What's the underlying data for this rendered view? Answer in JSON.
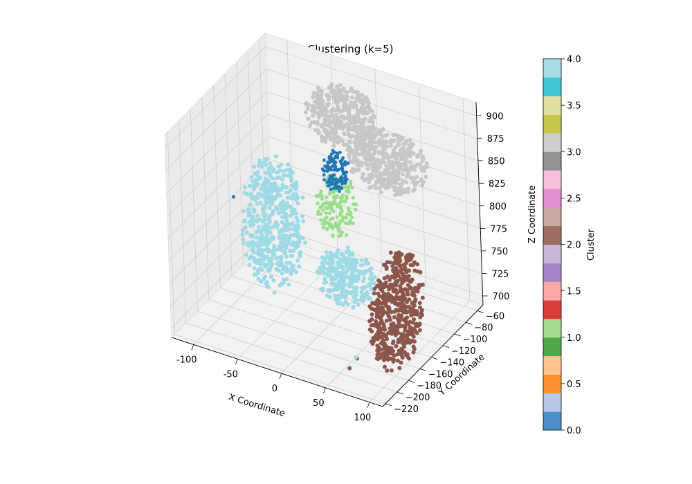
{
  "chart_data": {
    "type": "scatter",
    "projection": "3d",
    "title": "KMeans Clustering (k=5)",
    "xlabel": "X Coordinate",
    "ylabel": "Y Coordinate",
    "zlabel": "Z Coordinate",
    "xlim": [
      -125,
      115
    ],
    "ylim": [
      -225,
      -50
    ],
    "zlim": [
      690,
      915
    ],
    "x_ticks": [
      -100,
      -50,
      0,
      50,
      100
    ],
    "y_ticks": [
      -60,
      -80,
      -100,
      -120,
      -140,
      -160,
      -180,
      -200,
      -220
    ],
    "z_ticks": [
      700,
      725,
      750,
      775,
      800,
      825,
      850,
      875,
      900
    ],
    "grid": true,
    "colormap": "tab20",
    "colorbar": {
      "label": "Cluster",
      "range": [
        0,
        4
      ],
      "ticks": [
        "0.0",
        "0.5",
        "1.0",
        "1.5",
        "2.0",
        "2.5",
        "3.0",
        "3.5",
        "4.0"
      ],
      "colors": [
        "#4c8fc9",
        "#b6c9e8",
        "#ff922e",
        "#fdc48f",
        "#51a84a",
        "#a2db94",
        "#d93e3e",
        "#fda9a6",
        "#a684c6",
        "#c8b7d8",
        "#9b6c61",
        "#c8a9a0",
        "#e18ed0",
        "#f5bfdb",
        "#939393",
        "#cdcdcd",
        "#c6c64b",
        "#dfdfa2",
        "#42c6d3",
        "#a6dce6"
      ]
    },
    "clusters": [
      {
        "cluster": 0,
        "color": "#1f77b4",
        "label": "0"
      },
      {
        "cluster": 1,
        "color": "#98df8a",
        "label": "1"
      },
      {
        "cluster": 2,
        "color": "#8c564b",
        "label": "2"
      },
      {
        "cluster": 3,
        "color": "#c7c7c7",
        "label": "3"
      },
      {
        "cluster": 4,
        "color": "#9edae5",
        "label": "4"
      }
    ]
  }
}
